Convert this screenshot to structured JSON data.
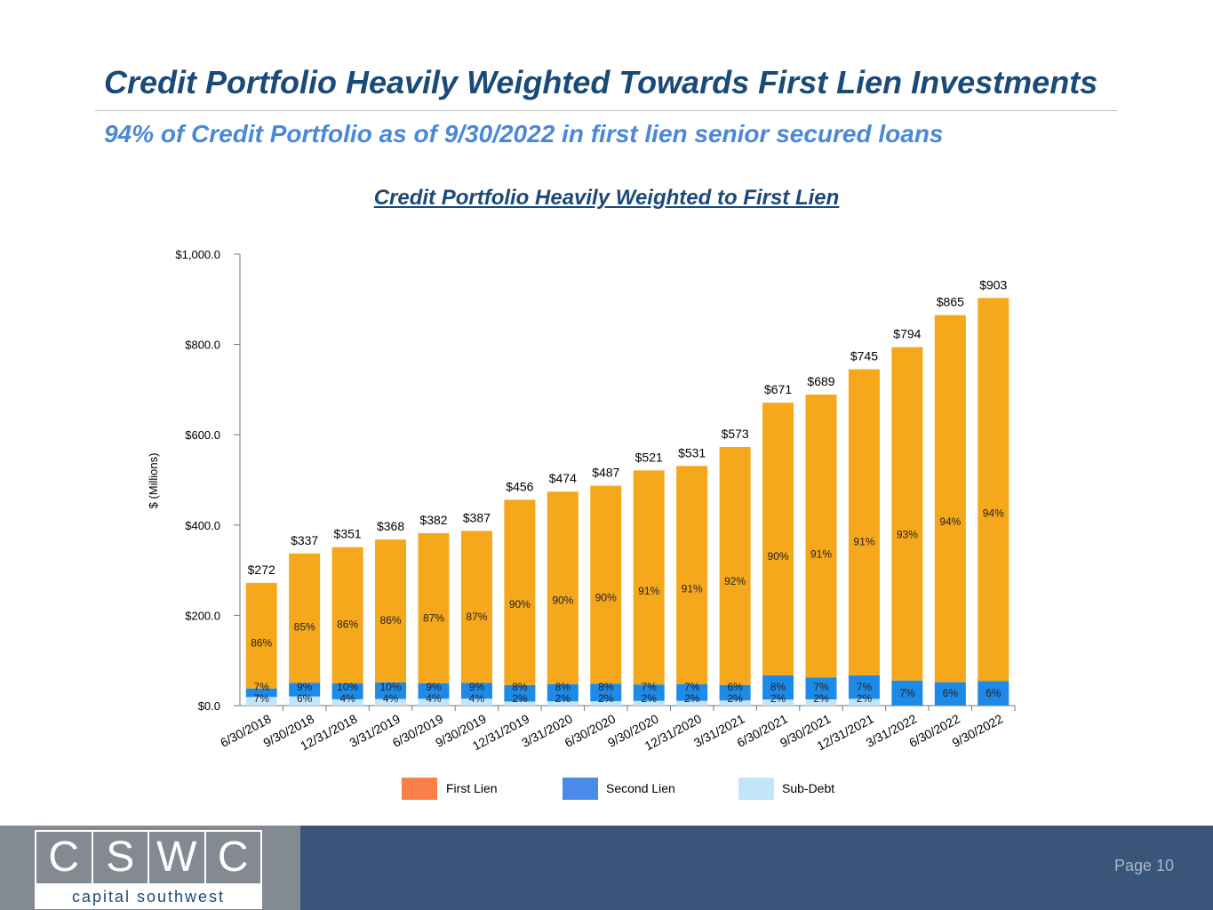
{
  "title": "Credit Portfolio Heavily Weighted Towards First Lien Investments",
  "subtitle": "94% of Credit Portfolio as of 9/30/2022 in first lien senior secured loans",
  "chart_title": "Credit Portfolio Heavily Weighted to First Lien",
  "colors": {
    "first_lien_bar": "#f6a81c",
    "second_lien_bar": "#1e8ae8",
    "sub_debt_bar": "#c4e4fa",
    "first_lien_legend": "#fa7f4a",
    "second_lien_legend": "#4a8be8",
    "sub_debt_legend": "#c4e4fa",
    "title": "#1a4a78",
    "subtitle": "#4a88d9"
  },
  "chart_data": {
    "type": "bar",
    "stacked": true,
    "ylabel": "$ (Millions)",
    "xlabel": "",
    "ylim": [
      0,
      1000
    ],
    "yticks": [
      0,
      200,
      400,
      600,
      800,
      1000
    ],
    "ytick_labels": [
      "$0.0",
      "$200.0",
      "$400.0",
      "$600.0",
      "$800.0",
      "$1,000.0"
    ],
    "categories": [
      "6/30/2018",
      "9/30/2018",
      "12/31/2018",
      "3/31/2019",
      "6/30/2019",
      "9/30/2019",
      "12/31/2019",
      "3/31/2020",
      "6/30/2020",
      "9/30/2020",
      "12/31/2020",
      "3/31/2021",
      "6/30/2021",
      "9/30/2021",
      "12/31/2021",
      "3/31/2022",
      "6/30/2022",
      "9/30/2022"
    ],
    "totals": [
      272,
      337,
      351,
      368,
      382,
      387,
      456,
      474,
      487,
      521,
      531,
      573,
      671,
      689,
      745,
      794,
      865,
      903
    ],
    "total_labels": [
      "$272",
      "$337",
      "$351",
      "$368",
      "$382",
      "$387",
      "$456",
      "$474",
      "$487",
      "$521",
      "$531",
      "$573",
      "$671",
      "$689",
      "$745",
      "$794",
      "$865",
      "$903"
    ],
    "series": [
      {
        "name": "Sub-Debt",
        "percent_labels": [
          "7%",
          "6%",
          "4%",
          "4%",
          "4%",
          "4%",
          "2%",
          "2%",
          "2%",
          "2%",
          "2%",
          "2%",
          "2%",
          "2%",
          "2%",
          "",
          "",
          ""
        ]
      },
      {
        "name": "Second Lien",
        "percent_labels": [
          "7%",
          "9%",
          "10%",
          "10%",
          "9%",
          "9%",
          "8%",
          "8%",
          "8%",
          "7%",
          "7%",
          "6%",
          "8%",
          "7%",
          "7%",
          "7%",
          "6%",
          "6%"
        ]
      },
      {
        "name": "First Lien",
        "percent_labels": [
          "86%",
          "85%",
          "86%",
          "86%",
          "87%",
          "87%",
          "90%",
          "90%",
          "90%",
          "91%",
          "91%",
          "92%",
          "90%",
          "91%",
          "91%",
          "93%",
          "94%",
          "94%"
        ]
      }
    ],
    "legend": [
      "First Lien",
      "Second Lien",
      "Sub-Debt"
    ],
    "legend_position": "bottom"
  },
  "footer": {
    "logo_letters": [
      "C",
      "S",
      "W",
      "C"
    ],
    "logo_tagline": "capital southwest",
    "page_label": "Page 10"
  }
}
